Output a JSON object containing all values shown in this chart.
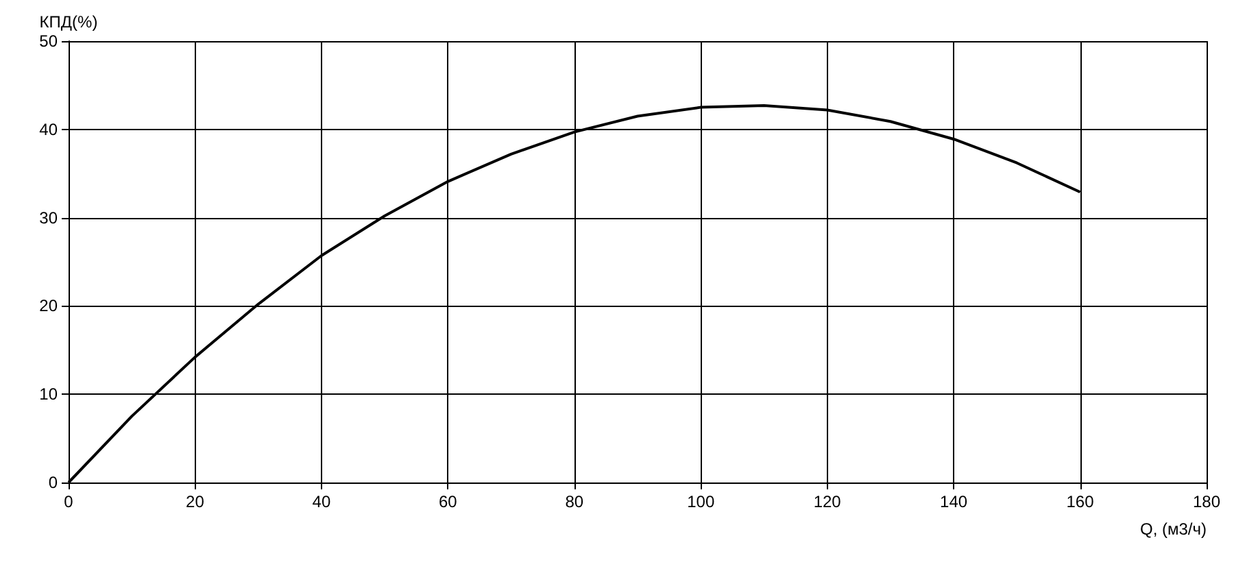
{
  "chart_data": {
    "type": "line",
    "xlabel": "Q, (м3/ч)",
    "ylabel": "КПД(%)",
    "x": [
      0,
      10,
      20,
      30,
      40,
      50,
      60,
      70,
      80,
      90,
      100,
      110,
      120,
      130,
      140,
      150,
      160
    ],
    "series": [
      {
        "color": "#000000",
        "values": [
          0,
          7.5,
          14.2,
          20.2,
          25.7,
          30.2,
          34.1,
          37.2,
          39.7,
          41.5,
          42.5,
          42.7,
          42.2,
          40.9,
          38.9,
          36.2,
          32.9
        ]
      }
    ],
    "xlim": [
      0,
      180
    ],
    "xticks": [
      0,
      20,
      40,
      60,
      80,
      100,
      120,
      140,
      160,
      180
    ],
    "ylim": [
      0,
      50
    ],
    "yticks": [
      0,
      10,
      20,
      30,
      40,
      50
    ],
    "grid": true,
    "marker": "none",
    "line_style": "solid"
  }
}
